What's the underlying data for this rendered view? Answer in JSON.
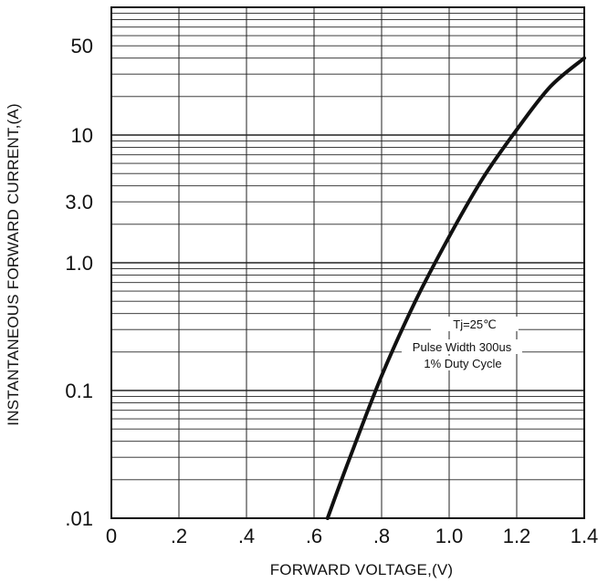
{
  "chart_data": {
    "type": "line",
    "title": "",
    "xlabel": "FORWARD VOLTAGE,(V)",
    "ylabel": "INSTANTANEOUS FORWARD CURRENT,(A)",
    "xscale": "linear",
    "yscale": "log",
    "xlim": [
      0,
      1.4
    ],
    "ylim": [
      0.01,
      100
    ],
    "grid": true,
    "x_ticks": [
      0,
      0.2,
      0.4,
      0.6,
      0.8,
      1.0,
      1.2,
      1.4
    ],
    "x_tick_labels": [
      "0",
      ".2",
      ".4",
      ".6",
      ".8",
      "1.0",
      "1.2",
      "1.4"
    ],
    "y_ticks": [
      0.01,
      0.1,
      1.0,
      3.0,
      10,
      50
    ],
    "y_tick_labels": [
      ".01",
      "0.1",
      "1.0",
      "3.0",
      "10",
      "50"
    ],
    "annotations": [
      "Tj=25℃",
      "Pulse Width 300us",
      "1% Duty Cycle"
    ],
    "series": [
      {
        "x": [
          0.64,
          0.7,
          0.8,
          0.9,
          1.0,
          1.1,
          1.2,
          1.3,
          1.4
        ],
        "y": [
          0.01,
          0.027,
          0.13,
          0.5,
          1.6,
          4.6,
          11,
          24,
          40
        ]
      }
    ],
    "colors": {
      "line": "#111111",
      "grid": "#222222"
    }
  }
}
